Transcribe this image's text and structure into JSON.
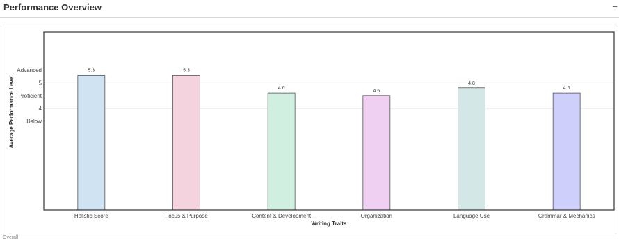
{
  "header": {
    "title": "Performance Overview",
    "collapse_symbol": "−"
  },
  "footer": {
    "text": "Overall"
  },
  "chart_data": {
    "type": "bar",
    "title": "",
    "xlabel": "Writing Traits",
    "ylabel": "Average Performance Level",
    "categories": [
      "Holistic Score",
      "Focus & Purpose",
      "Content & Development",
      "Organization",
      "Language Use",
      "Grammar & Mechanics"
    ],
    "values": [
      5.3,
      5.3,
      4.6,
      4.5,
      4.8,
      4.6
    ],
    "value_labels": [
      "5.3",
      "5.3",
      "4.6",
      "4.5",
      "4.8",
      "4.6"
    ],
    "colors": [
      "#cfe3f2",
      "#f5d3de",
      "#d0efe1",
      "#efd0f3",
      "#d3e7e7",
      "#cfcffb"
    ],
    "bar_stroke": "#555555",
    "ylim": [
      0,
      7
    ],
    "y_ticks": [
      {
        "value": 5.5,
        "label": "Advanced",
        "grid": false
      },
      {
        "value": 5,
        "label": "5",
        "grid": true
      },
      {
        "value": 4.5,
        "label": "Proficient",
        "grid": false
      },
      {
        "value": 4,
        "label": "4",
        "grid": true
      },
      {
        "value": 3.5,
        "label": "Below",
        "grid": false
      }
    ],
    "legend": "none"
  }
}
